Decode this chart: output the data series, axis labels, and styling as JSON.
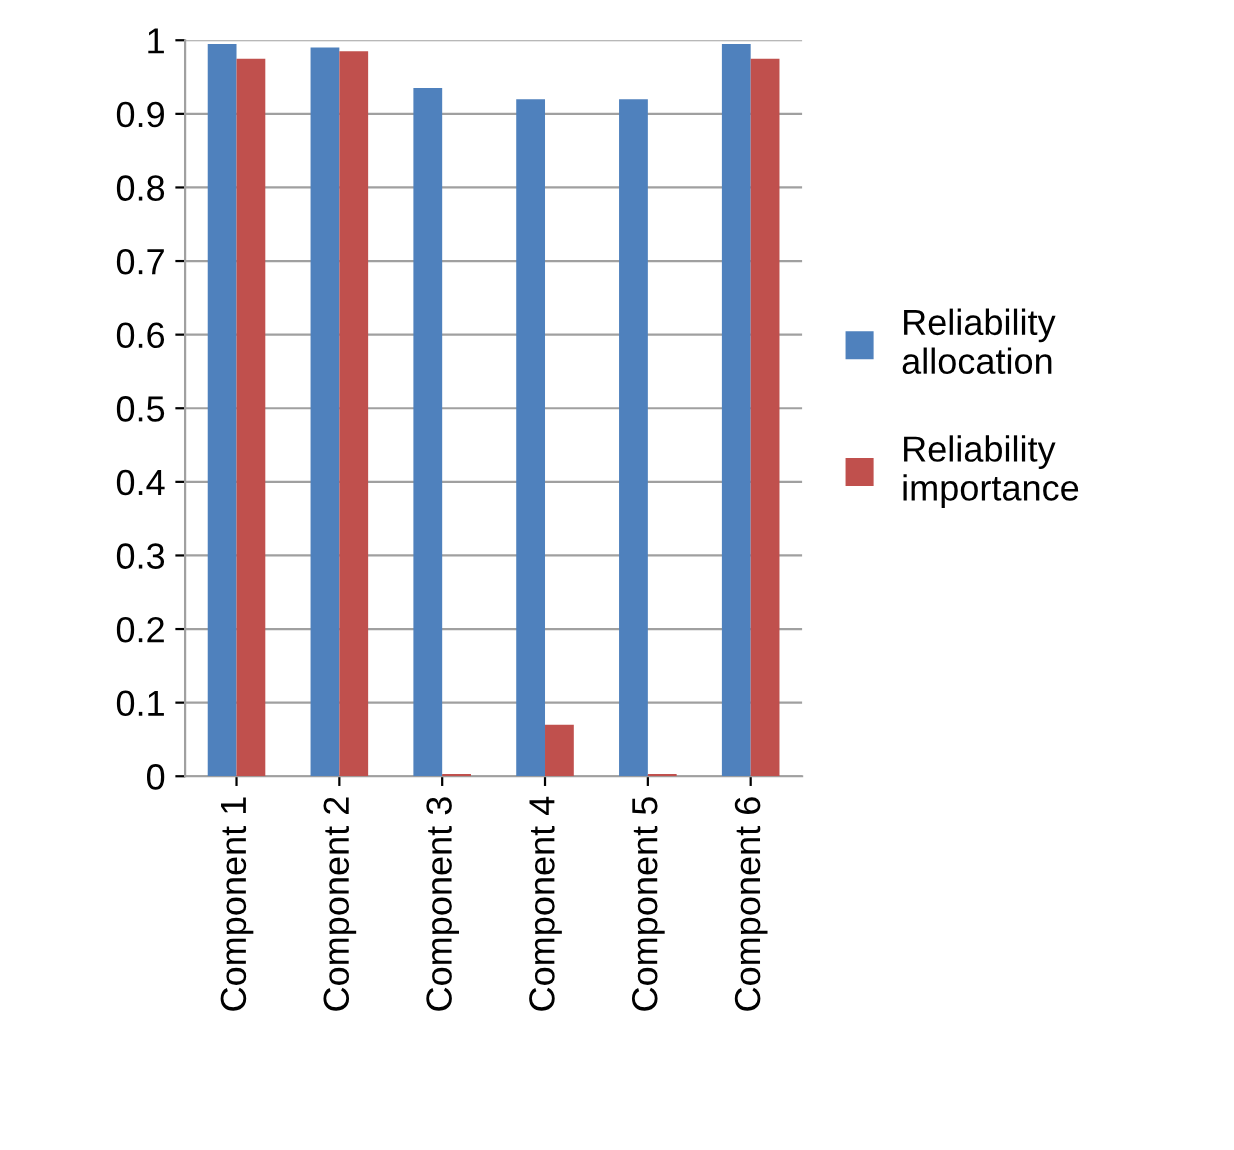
{
  "chart_data": {
    "type": "bar",
    "categories": [
      "Component 1",
      "Component 2",
      "Component 3",
      "Component 4",
      "Component 5",
      "Component 6"
    ],
    "series": [
      {
        "name": "Reliability allocation",
        "color": "#4f81bd",
        "values": [
          0.995,
          0.99,
          0.935,
          0.92,
          0.92,
          0.995
        ]
      },
      {
        "name": "Reliability importance",
        "color": "#c0504d",
        "values": [
          0.975,
          0.985,
          0.003,
          0.07,
          0.003,
          0.975
        ]
      }
    ],
    "ylim": [
      0,
      1
    ],
    "yticks": [
      0,
      0.1,
      0.2,
      0.3,
      0.4,
      0.5,
      0.6,
      0.7,
      0.8,
      0.9,
      1
    ],
    "grid": "y",
    "legend": "right"
  }
}
